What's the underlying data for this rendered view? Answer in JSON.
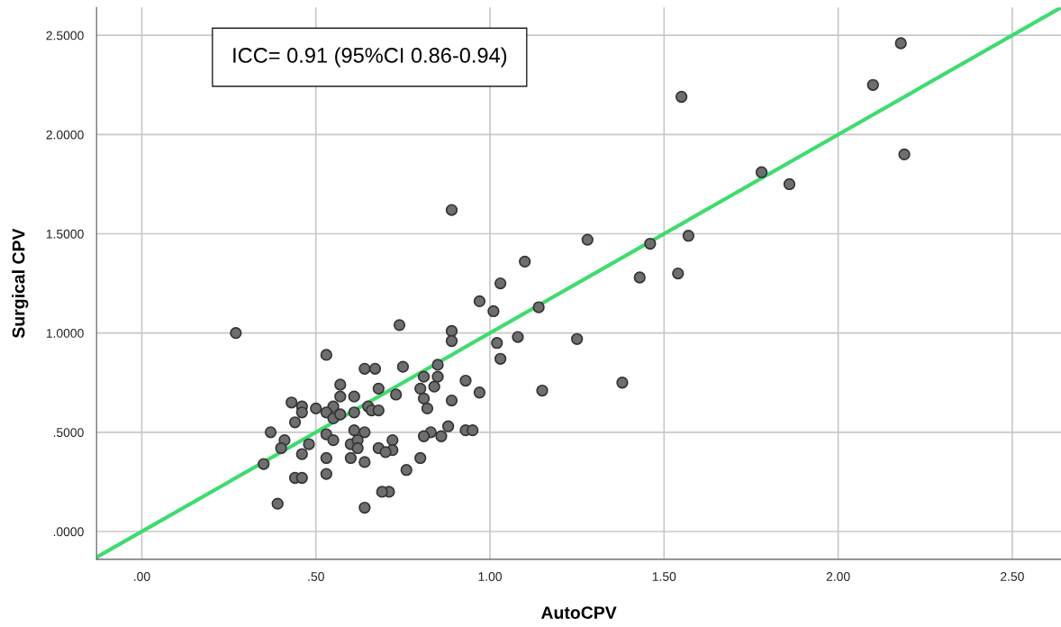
{
  "chart_data": {
    "type": "scatter",
    "xlabel": "AutoCPV",
    "ylabel": "Surgical CPV",
    "annotations": [
      "ICC= 0.91 (95%CI 0.86-0.94)"
    ],
    "xlim": [
      -0.13,
      2.64
    ],
    "ylim": [
      -0.14,
      2.64
    ],
    "xticks": [
      {
        "value": 0,
        "label": ".00"
      },
      {
        "value": 0.5,
        "label": ".50"
      },
      {
        "value": 1,
        "label": "1.00"
      },
      {
        "value": 1.5,
        "label": "1.50"
      },
      {
        "value": 2,
        "label": "2.00"
      },
      {
        "value": 2.5,
        "label": "2.50"
      }
    ],
    "yticks": [
      {
        "value": 0,
        "label": ".0000"
      },
      {
        "value": 0.5,
        "label": ".5000"
      },
      {
        "value": 1,
        "label": "1.0000"
      },
      {
        "value": 1.5,
        "label": "1.5000"
      },
      {
        "value": 2,
        "label": "2.0000"
      },
      {
        "value": 2.5,
        "label": "2.5000"
      }
    ],
    "grid": true,
    "marker": "circle",
    "series": [
      {
        "color": "#6e6e6e",
        "x": [
          2.18,
          2.1,
          1.55,
          2.19,
          1.78,
          1.86,
          1.46,
          1.57,
          1.43,
          1.54,
          0.89,
          1.28,
          1.1,
          1.03,
          0.97,
          1.01,
          1.14,
          0.89,
          0.89,
          1.08,
          1.25,
          1.02,
          1.03,
          0.85,
          0.85,
          0.84,
          0.93,
          0.97,
          1.15,
          1.38,
          0.89,
          0.74,
          0.75,
          0.81,
          0.8,
          0.81,
          0.73,
          0.82,
          0.88,
          0.83,
          0.86,
          0.81,
          0.93,
          0.95,
          0.72,
          0.72,
          0.8,
          0.76,
          0.71,
          0.27,
          0.53,
          0.64,
          0.67,
          0.57,
          0.68,
          0.57,
          0.61,
          0.43,
          0.46,
          0.46,
          0.5,
          0.55,
          0.65,
          0.66,
          0.68,
          0.53,
          0.55,
          0.57,
          0.61,
          0.44,
          0.61,
          0.64,
          0.53,
          0.37,
          0.41,
          0.4,
          0.48,
          0.55,
          0.6,
          0.62,
          0.62,
          0.68,
          0.7,
          0.46,
          0.53,
          0.6,
          0.64,
          0.35,
          0.44,
          0.46,
          0.53,
          0.69,
          0.39,
          0.64
        ],
        "values": [
          2.46,
          2.25,
          2.19,
          1.9,
          1.81,
          1.75,
          1.45,
          1.49,
          1.28,
          1.3,
          1.62,
          1.47,
          1.36,
          1.25,
          1.16,
          1.11,
          1.13,
          1.01,
          0.96,
          0.98,
          0.97,
          0.95,
          0.87,
          0.84,
          0.78,
          0.73,
          0.76,
          0.7,
          0.71,
          0.75,
          0.66,
          1.04,
          0.83,
          0.78,
          0.72,
          0.67,
          0.69,
          0.62,
          0.53,
          0.5,
          0.48,
          0.48,
          0.51,
          0.51,
          0.46,
          0.41,
          0.37,
          0.31,
          0.2,
          1.0,
          0.89,
          0.82,
          0.82,
          0.74,
          0.72,
          0.68,
          0.68,
          0.65,
          0.63,
          0.6,
          0.62,
          0.63,
          0.63,
          0.61,
          0.61,
          0.6,
          0.57,
          0.59,
          0.6,
          0.55,
          0.51,
          0.5,
          0.49,
          0.5,
          0.46,
          0.42,
          0.44,
          0.46,
          0.44,
          0.46,
          0.42,
          0.42,
          0.4,
          0.39,
          0.37,
          0.37,
          0.35,
          0.34,
          0.27,
          0.27,
          0.29,
          0.2,
          0.14,
          0.12
        ]
      },
      {
        "type": "line",
        "color": "#3ddc6f",
        "marker": "none",
        "x": [
          -0.13,
          2.64
        ],
        "values": [
          -0.13,
          2.64
        ]
      }
    ]
  }
}
